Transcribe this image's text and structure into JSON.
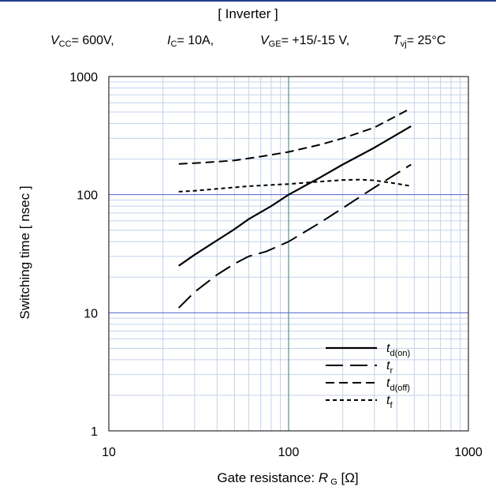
{
  "title": "[ Inverter ]",
  "conditions": {
    "vcc_sym": "V",
    "vcc_sub": "CC",
    "vcc_val": "= 600V,",
    "ic_sym": "I",
    "ic_sub": "C",
    "ic_val": "= 10A,",
    "vge_sym": "V",
    "vge_sub": "GE",
    "vge_val": "= +15/-15 V,",
    "tvj_sym": "T",
    "tvj_sub": "vj",
    "tvj_val": "= 25°C"
  },
  "chart_data": {
    "type": "line",
    "title": "[ Inverter ]",
    "xlabel": "Gate resistance: R G [Ω]",
    "ylabel": "Switching time [ nsec ]",
    "x_scale": "log",
    "y_scale": "log",
    "xlim": [
      10,
      1000
    ],
    "ylim": [
      1,
      1000
    ],
    "x_ticks": [
      "10",
      "100",
      "1000"
    ],
    "y_ticks": [
      "1",
      "10",
      "100",
      "1000"
    ],
    "grid": true,
    "legend_position": "bottom-right",
    "series": [
      {
        "name": "td(on)",
        "sym": "t",
        "sub": "d(on)",
        "dash": "",
        "width": 2.2,
        "x": [
          24.5,
          30,
          40,
          50,
          60,
          80,
          100,
          150,
          200,
          300,
          480
        ],
        "y": [
          25,
          31,
          41,
          51,
          62,
          80,
          100,
          140,
          180,
          250,
          380
        ]
      },
      {
        "name": "tr",
        "sym": "t",
        "sub": "r",
        "dash": "22,9",
        "width": 2.0,
        "x": [
          24.5,
          30,
          40,
          50,
          60,
          75,
          100,
          150,
          200,
          300,
          480
        ],
        "y": [
          11,
          15,
          21,
          26,
          30,
          33,
          40,
          58,
          77,
          115,
          180
        ]
      },
      {
        "name": "td(off)",
        "sym": "t",
        "sub": "d(off)",
        "dash": "11,6",
        "width": 2.0,
        "x": [
          24.5,
          30,
          40,
          50,
          70,
          100,
          150,
          200,
          300,
          480
        ],
        "y": [
          182,
          185,
          190,
          195,
          210,
          230,
          265,
          300,
          370,
          540
        ]
      },
      {
        "name": "tf",
        "sym": "t",
        "sub": "f",
        "dash": "5,4",
        "width": 2.0,
        "x": [
          24.5,
          30,
          40,
          60,
          100,
          150,
          200,
          250,
          300,
          400,
          480
        ],
        "y": [
          106,
          108,
          112,
          118,
          123,
          129,
          133,
          134,
          132,
          124,
          118
        ]
      }
    ]
  }
}
